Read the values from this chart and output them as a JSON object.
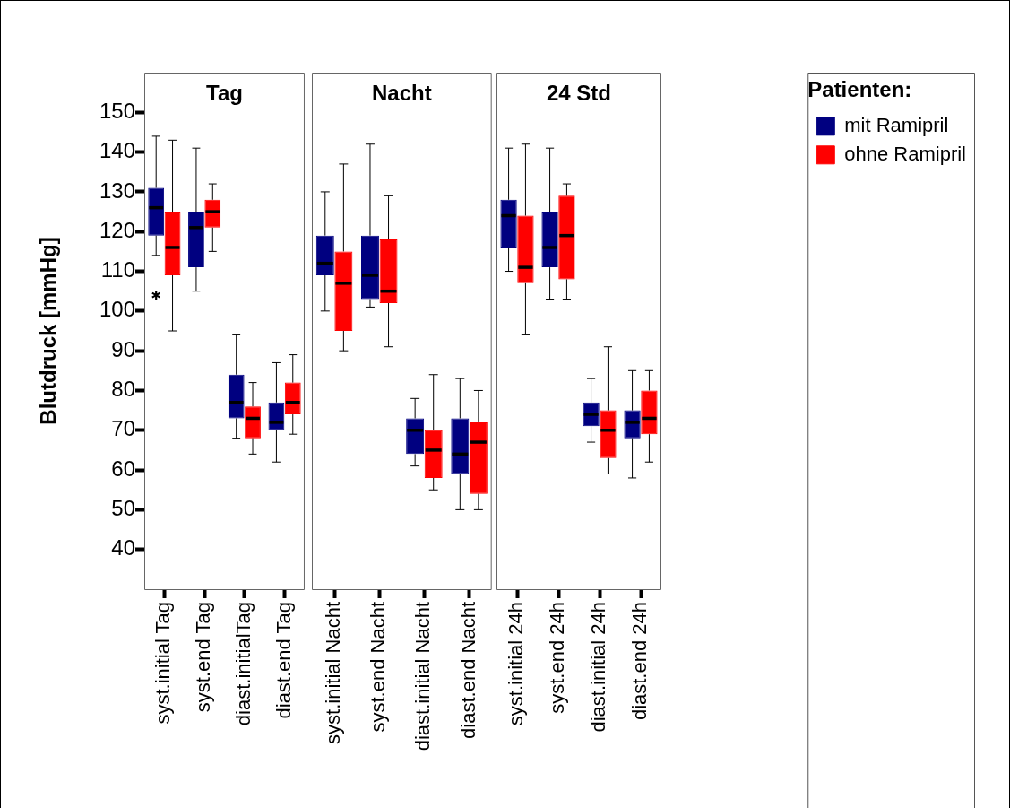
{
  "chart_data": [
    {
      "type": "box",
      "title": "Tag",
      "ylabel": "Blutdruck [mmHg]",
      "categories": [
        "syst.initial Tag",
        "syst.end Tag",
        "diast.initialTag",
        "diast.end Tag"
      ],
      "ylim": [
        30,
        160
      ],
      "yticks": [
        40,
        50,
        60,
        70,
        80,
        90,
        100,
        110,
        120,
        130,
        140,
        150
      ],
      "grid": false,
      "series": [
        {
          "color": "#000080",
          "boxes": [
            {
              "low": 114,
              "q1": 119,
              "median": 126,
              "q3": 131,
              "high": 144,
              "outliers": [
                104
              ]
            },
            {
              "low": 105,
              "q1": 111,
              "median": 121,
              "q3": 125,
              "high": 141
            },
            {
              "low": 68,
              "q1": 73,
              "median": 77,
              "q3": 84,
              "high": 94
            },
            {
              "low": 62,
              "q1": 70,
              "median": 72,
              "q3": 77,
              "high": 87
            }
          ]
        },
        {
          "color": "#ff0000",
          "boxes": [
            {
              "low": 95,
              "q1": 109,
              "median": 116,
              "q3": 125,
              "high": 143
            },
            {
              "low": 115,
              "q1": 121,
              "median": 125,
              "q3": 128,
              "high": 132
            },
            {
              "low": 64,
              "q1": 68,
              "median": 73,
              "q3": 76,
              "high": 82
            },
            {
              "low": 69,
              "q1": 74,
              "median": 77,
              "q3": 82,
              "high": 89
            }
          ]
        }
      ]
    },
    {
      "type": "box",
      "title": "Nacht",
      "categories": [
        "syst.initial Nacht",
        "syst.end Nacht",
        "diast.initial Nacht",
        "diast.end Nacht"
      ],
      "ylim": [
        30,
        160
      ],
      "yticks": [
        40,
        50,
        60,
        70,
        80,
        90,
        100,
        110,
        120,
        130,
        140,
        150
      ],
      "grid": false,
      "tick_labels": "x",
      "series": [
        {
          "color": "#000080",
          "boxes": [
            {
              "low": 100,
              "q1": 109,
              "median": 112,
              "q3": 119,
              "high": 130
            },
            {
              "low": 101,
              "q1": 103,
              "median": 109,
              "q3": 119,
              "high": 142
            },
            {
              "low": 61,
              "q1": 64,
              "median": 70,
              "q3": 73,
              "high": 78
            },
            {
              "low": 50,
              "q1": 59,
              "median": 64,
              "q3": 73,
              "high": 83
            }
          ]
        },
        {
          "color": "#ff0000",
          "boxes": [
            {
              "low": 90,
              "q1": 95,
              "median": 107,
              "q3": 115,
              "high": 137
            },
            {
              "low": 91,
              "q1": 102,
              "median": 105,
              "q3": 118,
              "high": 129
            },
            {
              "low": 55,
              "q1": 58,
              "median": 65,
              "q3": 70,
              "high": 84
            },
            {
              "low": 50,
              "q1": 54,
              "median": 67,
              "q3": 72,
              "high": 80
            }
          ]
        }
      ]
    },
    {
      "type": "box",
      "title": "24 Std",
      "categories": [
        "syst.initial 24h",
        "syst.end 24h",
        "diast.initial 24h",
        "diast.end 24h"
      ],
      "ylim": [
        30,
        160
      ],
      "yticks": [
        40,
        50,
        60,
        70,
        80,
        90,
        100,
        110,
        120,
        130,
        140,
        150
      ],
      "grid": false,
      "tick_labels": "x",
      "legend": "right",
      "legend_title": "Patienten:",
      "series": [
        {
          "name": "mit Ramipril",
          "color": "#000080",
          "boxes": [
            {
              "low": 110,
              "q1": 116,
              "median": 124,
              "q3": 128,
              "high": 141
            },
            {
              "low": 103,
              "q1": 111,
              "median": 116,
              "q3": 125,
              "high": 141
            },
            {
              "low": 67,
              "q1": 71,
              "median": 74,
              "q3": 77,
              "high": 83
            },
            {
              "low": 58,
              "q1": 68,
              "median": 72,
              "q3": 75,
              "high": 85
            }
          ]
        },
        {
          "name": "ohne Ramipril",
          "color": "#ff0000",
          "boxes": [
            {
              "low": 94,
              "q1": 107,
              "median": 111,
              "q3": 124,
              "high": 142
            },
            {
              "low": 103,
              "q1": 108,
              "median": 119,
              "q3": 129,
              "high": 132
            },
            {
              "low": 59,
              "q1": 63,
              "median": 70,
              "q3": 75,
              "high": 91
            },
            {
              "low": 62,
              "q1": 69,
              "median": 73,
              "q3": 80,
              "high": 85
            }
          ]
        }
      ]
    }
  ]
}
